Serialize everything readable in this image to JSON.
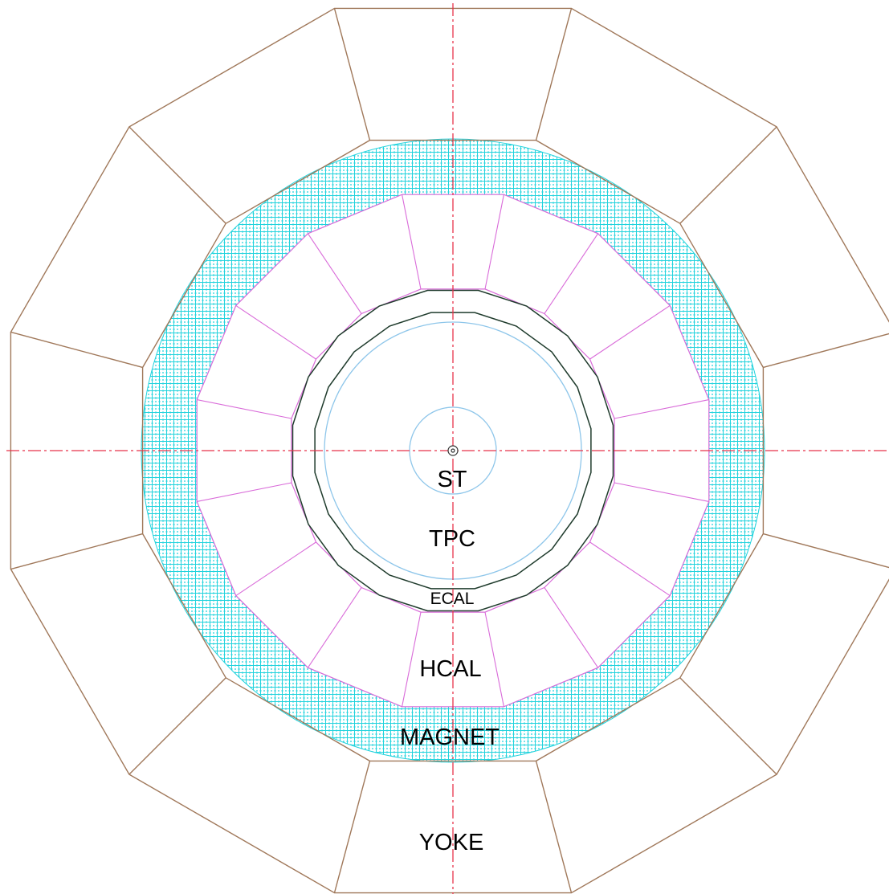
{
  "labels": {
    "st": "ST",
    "tpc": "TPC",
    "ecal": "ECAL",
    "hcal": "HCAL",
    "magnet": "MAGNET",
    "yoke": "YOKE"
  },
  "colors": {
    "yoke": "#a0785a",
    "magnet_hatch": "#22d3dd",
    "hcal": "#d96bd9",
    "ecal": "#1f3b2c",
    "tpc": "#8ec6ea",
    "axis": "#e8334a",
    "beam": "#333333"
  }
}
